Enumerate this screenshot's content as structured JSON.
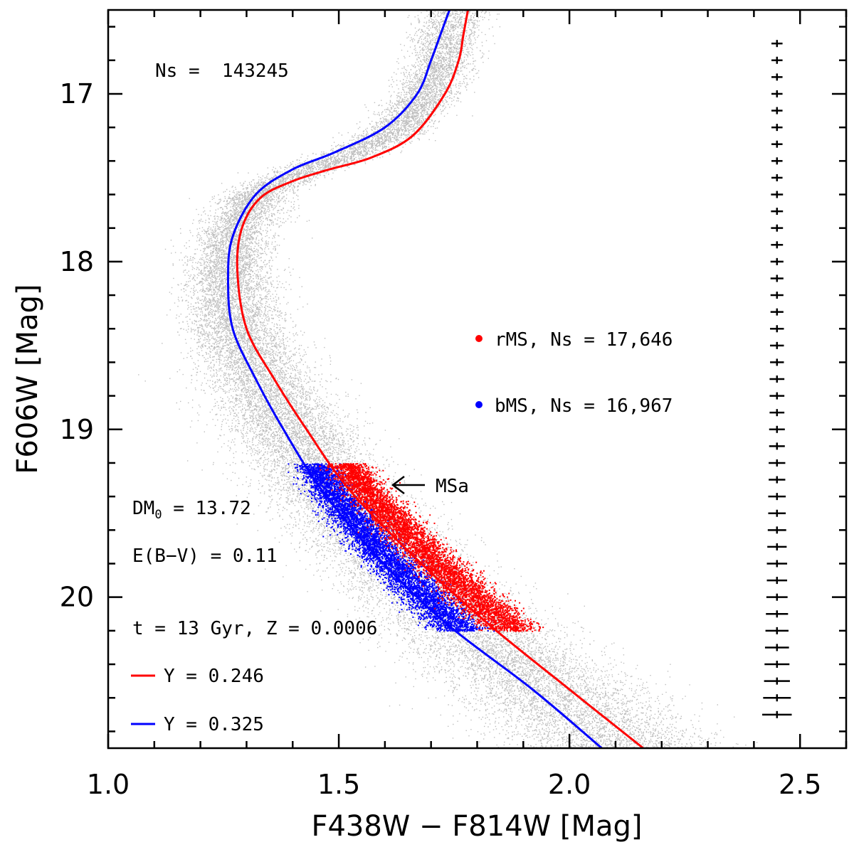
{
  "chart_data": {
    "type": "scatter",
    "title": "",
    "xlabel": "F438W − F814W [Mag]",
    "ylabel": "F606W [Mag]",
    "xlim": [
      1.0,
      2.6
    ],
    "ylim": [
      20.9,
      16.5
    ],
    "y_inverted": true,
    "x_ticks": [
      {
        "value": 1.0,
        "label": "1.0"
      },
      {
        "value": 1.5,
        "label": "1.5"
      },
      {
        "value": 2.0,
        "label": "2.0"
      },
      {
        "value": 2.5,
        "label": "2.5"
      }
    ],
    "y_ticks": [
      {
        "value": 17,
        "label": "17"
      },
      {
        "value": 18,
        "label": "18"
      },
      {
        "value": 19,
        "label": "19"
      },
      {
        "value": 20,
        "label": "20"
      }
    ],
    "total_stars_label": "Ns =  143245",
    "series": [
      {
        "name": "all stars",
        "kind": "points",
        "color": "#bdbdbd",
        "count": 143245
      },
      {
        "name": "rMS",
        "kind": "points",
        "color": "#ff0000",
        "legend": "rMS, Ns = 17,646",
        "mag_range": [
          19.2,
          20.2
        ]
      },
      {
        "name": "bMS",
        "kind": "points",
        "color": "#0000ff",
        "legend": "bMS, Ns = 16,967",
        "mag_range": [
          19.2,
          20.2
        ]
      },
      {
        "name": "Y = 0.246",
        "kind": "line",
        "color": "#ff0000",
        "x": [
          2.16,
          2.0,
          1.82,
          1.66,
          1.52,
          1.43,
          1.36,
          1.3,
          1.28,
          1.29,
          1.33,
          1.4,
          1.48,
          1.57,
          1.66,
          1.73,
          1.76,
          1.77,
          1.78
        ],
        "y": [
          20.9,
          20.55,
          20.15,
          19.75,
          19.35,
          19.0,
          18.7,
          18.4,
          18.05,
          17.8,
          17.62,
          17.52,
          17.45,
          17.38,
          17.25,
          17.0,
          16.8,
          16.65,
          16.5
        ]
      },
      {
        "name": "Y = 0.325",
        "kind": "line",
        "color": "#0000ff",
        "x": [
          2.07,
          1.92,
          1.73,
          1.58,
          1.46,
          1.38,
          1.32,
          1.27,
          1.26,
          1.27,
          1.32,
          1.4,
          1.49,
          1.6,
          1.67,
          1.7,
          1.72,
          1.74
        ],
        "y": [
          20.9,
          20.55,
          20.15,
          19.75,
          19.35,
          19.0,
          18.7,
          18.4,
          18.1,
          17.85,
          17.6,
          17.45,
          17.35,
          17.2,
          17.0,
          16.8,
          16.65,
          16.5
        ]
      },
      {
        "name": "error bars",
        "kind": "errorbar",
        "color": "#000000",
        "x": 2.45,
        "y": [
          16.7,
          16.8,
          16.9,
          17.0,
          17.1,
          17.2,
          17.3,
          17.4,
          17.5,
          17.6,
          17.7,
          17.8,
          17.9,
          18.0,
          18.1,
          18.2,
          18.3,
          18.4,
          18.5,
          18.6,
          18.7,
          18.8,
          18.9,
          19.0,
          19.1,
          19.2,
          19.3,
          19.4,
          19.5,
          19.6,
          19.7,
          19.8,
          19.9,
          20.0,
          20.1,
          20.2,
          20.3,
          20.4,
          20.5,
          20.6,
          20.7
        ],
        "xerr": [
          0.012,
          0.012,
          0.012,
          0.012,
          0.012,
          0.012,
          0.012,
          0.012,
          0.012,
          0.013,
          0.013,
          0.013,
          0.013,
          0.014,
          0.014,
          0.014,
          0.014,
          0.015,
          0.015,
          0.015,
          0.016,
          0.016,
          0.016,
          0.017,
          0.017,
          0.018,
          0.018,
          0.019,
          0.019,
          0.02,
          0.021,
          0.022,
          0.022,
          0.023,
          0.024,
          0.025,
          0.026,
          0.027,
          0.028,
          0.03,
          0.032
        ]
      }
    ],
    "annotations": {
      "msa_label": "MSa",
      "dm_label": "DM",
      "dm_sub": "0",
      "dm_value": " = 13.72",
      "ebv": "E(B−V) = 0.11",
      "age_z": "t = 13 Gyr, Z = 0.0006",
      "y1_label": "Y = 0.246",
      "y2_label": "Y = 0.325",
      "rms_legend": "rMS, Ns = 17,646",
      "bms_legend": "bMS, Ns = 16,967"
    }
  }
}
